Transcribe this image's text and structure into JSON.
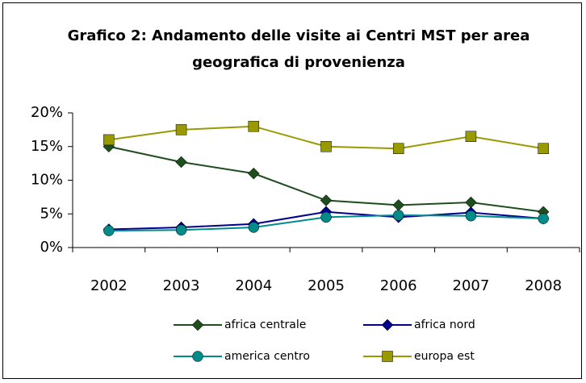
{
  "chart_data": {
    "type": "line",
    "title": "Grafico 2: Andamento delle visite ai Centri MST per area geografica di provenienza",
    "categories": [
      "2002",
      "2003",
      "2004",
      "2005",
      "2006",
      "2007",
      "2008"
    ],
    "series": [
      {
        "name": "africa centrale",
        "color": "#1e4d1e",
        "marker": "diamond",
        "values": [
          15,
          12.7,
          11,
          7,
          6.3,
          6.7,
          5.3
        ]
      },
      {
        "name": "africa nord",
        "color": "#00008b",
        "marker": "diamond",
        "values": [
          2.7,
          3,
          3.5,
          5.3,
          4.5,
          5.2,
          4.3
        ]
      },
      {
        "name": "america centro",
        "color": "#008b8b",
        "marker": "circle",
        "values": [
          2.5,
          2.6,
          3,
          4.5,
          4.8,
          4.7,
          4.3
        ]
      },
      {
        "name": "europa est",
        "color": "#999900",
        "marker": "square",
        "values": [
          16,
          17.5,
          18,
          15,
          14.7,
          16.5,
          14.7
        ]
      }
    ],
    "ylim": [
      0,
      20
    ],
    "yticks": [
      {
        "value": 0,
        "label": "0%"
      },
      {
        "value": 5,
        "label": "5%"
      },
      {
        "value": 10,
        "label": "10%"
      },
      {
        "value": 15,
        "label": "15%"
      },
      {
        "value": 20,
        "label": "20%"
      }
    ],
    "legend": "bottom"
  }
}
